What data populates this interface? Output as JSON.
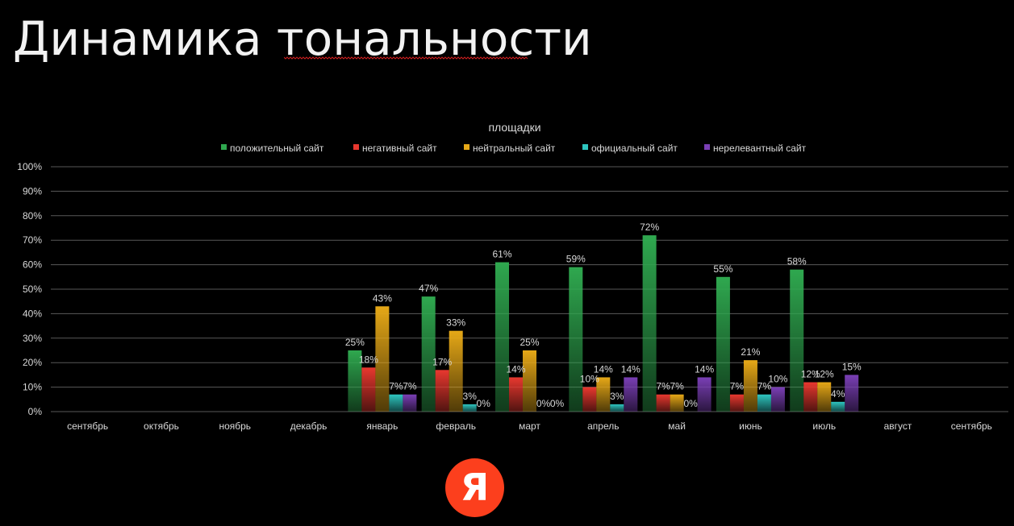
{
  "slide": {
    "title": "Динамика тональности",
    "logo_text": "Я"
  },
  "colors": {
    "background": "#000000",
    "logo": "#fc3f1d",
    "spellcheck_squiggle": "#d21f1f"
  },
  "chart_data": {
    "type": "bar",
    "title": "площадки",
    "legend_position": "top",
    "grid": true,
    "ylim": [
      0,
      100
    ],
    "y_ticks": [
      "0%",
      "10%",
      "20%",
      "30%",
      "40%",
      "50%",
      "60%",
      "70%",
      "80%",
      "90%",
      "100%"
    ],
    "categories": [
      "сентябрь",
      "октябрь",
      "ноябрь",
      "декабрь",
      "январь",
      "февраль",
      "март",
      "апрель",
      "май",
      "июнь",
      "июль",
      "август",
      "сентябрь"
    ],
    "series": [
      {
        "name": "положительный сайт",
        "color": "#2fa84f",
        "values": [
          null,
          null,
          null,
          null,
          25,
          47,
          61,
          59,
          72,
          55,
          58,
          null,
          null
        ]
      },
      {
        "name": "негативный сайт",
        "color": "#e8382f",
        "values": [
          null,
          null,
          null,
          null,
          18,
          17,
          14,
          10,
          7,
          7,
          12,
          null,
          null
        ]
      },
      {
        "name": "нейтральный сайт",
        "color": "#e6a817",
        "values": [
          null,
          null,
          null,
          null,
          43,
          33,
          25,
          14,
          7,
          21,
          12,
          null,
          null
        ]
      },
      {
        "name": "официальный сайт",
        "color": "#2ec6c0",
        "values": [
          null,
          null,
          null,
          null,
          7,
          3,
          0,
          3,
          0,
          7,
          4,
          null,
          null
        ]
      },
      {
        "name": "нерелевантный сайт",
        "color": "#7a3fb5",
        "values": [
          null,
          null,
          null,
          null,
          7,
          0,
          0,
          14,
          14,
          10,
          15,
          null,
          null
        ]
      }
    ]
  }
}
